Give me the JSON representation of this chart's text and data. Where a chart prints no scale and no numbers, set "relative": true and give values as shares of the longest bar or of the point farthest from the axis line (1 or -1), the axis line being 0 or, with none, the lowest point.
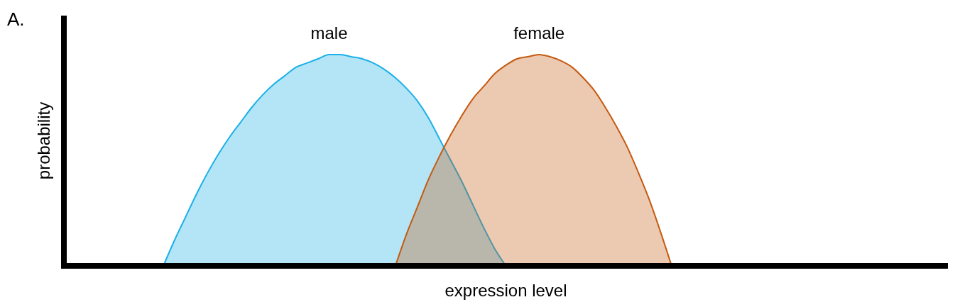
{
  "chart_data": {
    "type": "area",
    "relative": true,
    "xlabel": "expression level",
    "ylabel": "probability",
    "annotations": [
      "A."
    ],
    "categories": [
      null,
      null,
      null,
      null,
      null,
      null,
      null,
      null,
      null,
      null,
      null,
      null,
      null,
      null,
      null,
      null,
      null,
      null,
      null,
      null,
      null,
      null,
      null,
      null,
      null,
      null,
      null,
      null,
      null,
      null,
      null,
      null,
      null,
      null,
      null,
      null,
      null,
      null,
      null,
      null,
      null,
      null,
      null,
      null,
      null,
      null,
      null,
      null,
      null,
      null,
      null,
      null,
      null,
      null,
      null,
      null,
      null,
      null,
      null,
      null,
      null,
      null,
      null,
      null,
      null,
      null,
      null,
      null,
      null,
      null,
      null,
      null,
      null,
      null,
      null,
      null,
      null,
      null,
      null,
      null,
      null
    ],
    "series": [
      {
        "name": "male",
        "color": "#1ab0e8",
        "values": [
          null,
          null,
          null,
          null,
          null,
          null,
          null,
          null,
          null,
          0,
          0.12,
          0.23,
          0.34,
          0.44,
          0.53,
          0.61,
          0.68,
          0.75,
          0.81,
          0.86,
          0.9,
          0.94,
          0.96,
          0.98,
          1,
          1,
          0.99,
          0.98,
          0.96,
          0.93,
          0.89,
          0.84,
          0.78,
          0.7,
          0.6,
          0.5,
          0.4,
          0.29,
          0.18,
          0.08,
          0,
          null,
          null,
          null,
          null,
          null,
          null,
          null,
          null,
          null,
          null,
          null,
          null,
          null,
          null,
          null,
          null,
          null,
          null,
          null,
          null,
          null,
          null,
          null,
          null,
          null,
          null,
          null,
          null,
          null,
          null,
          null,
          null,
          null,
          null,
          null,
          null,
          null,
          null,
          null,
          null
        ]
      },
      {
        "name": "female",
        "color": "#c55a11",
        "values": [
          null,
          null,
          null,
          null,
          null,
          null,
          null,
          null,
          null,
          null,
          null,
          null,
          null,
          null,
          null,
          null,
          null,
          null,
          null,
          null,
          null,
          null,
          null,
          null,
          null,
          null,
          null,
          null,
          null,
          null,
          0,
          0.15,
          0.28,
          0.41,
          0.52,
          0.62,
          0.71,
          0.79,
          0.85,
          0.91,
          0.95,
          0.98,
          0.99,
          1,
          0.99,
          0.97,
          0.94,
          0.89,
          0.83,
          0.75,
          0.66,
          0.56,
          0.44,
          0.31,
          0.16,
          0,
          null,
          null,
          null,
          null,
          null,
          null,
          null,
          null,
          null,
          null,
          null,
          null,
          null,
          null,
          null,
          null,
          null,
          null,
          null,
          null,
          null,
          null,
          null,
          null,
          null
        ]
      }
    ]
  }
}
